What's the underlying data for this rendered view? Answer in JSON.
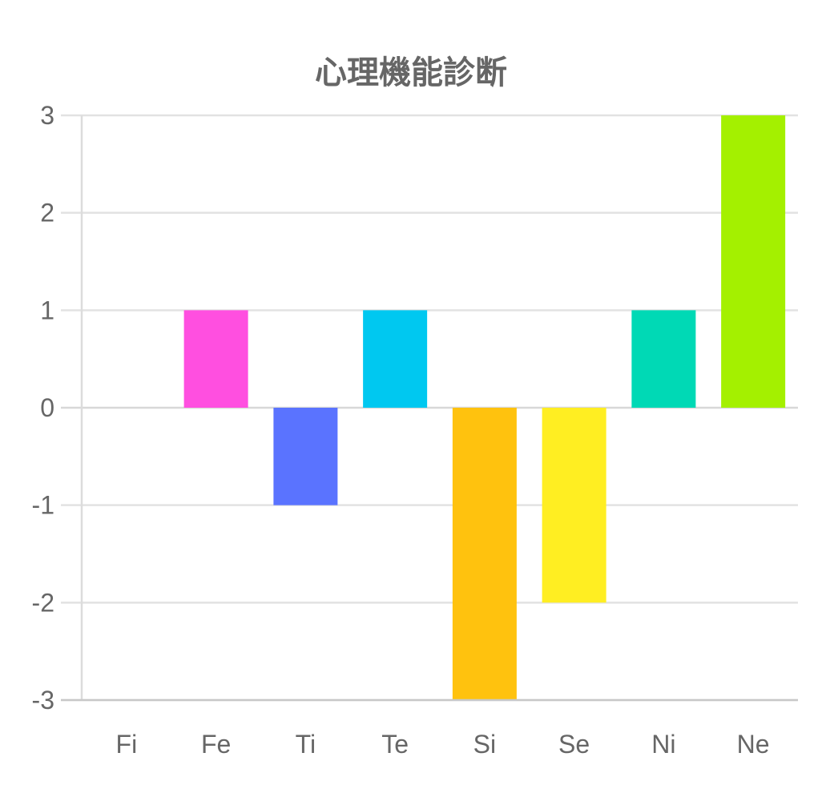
{
  "chart_data": {
    "type": "bar",
    "title": "心理機能診断",
    "xlabel": "",
    "ylabel": "",
    "categories": [
      "Fi",
      "Fe",
      "Ti",
      "Te",
      "Si",
      "Se",
      "Ni",
      "Ne"
    ],
    "values": [
      0,
      1,
      -1,
      1,
      -3,
      -2,
      1,
      3
    ],
    "colors": [
      "#e0e0e0",
      "#ff4fe0",
      "#5a73ff",
      "#00c8f0",
      "#ffc20e",
      "#ffee22",
      "#00d9b5",
      "#a4f000"
    ],
    "ylim": [
      -3,
      3
    ],
    "yticks": [
      3,
      2,
      1,
      0,
      -1,
      -2,
      -3
    ],
    "grid": true,
    "legend": "none"
  }
}
